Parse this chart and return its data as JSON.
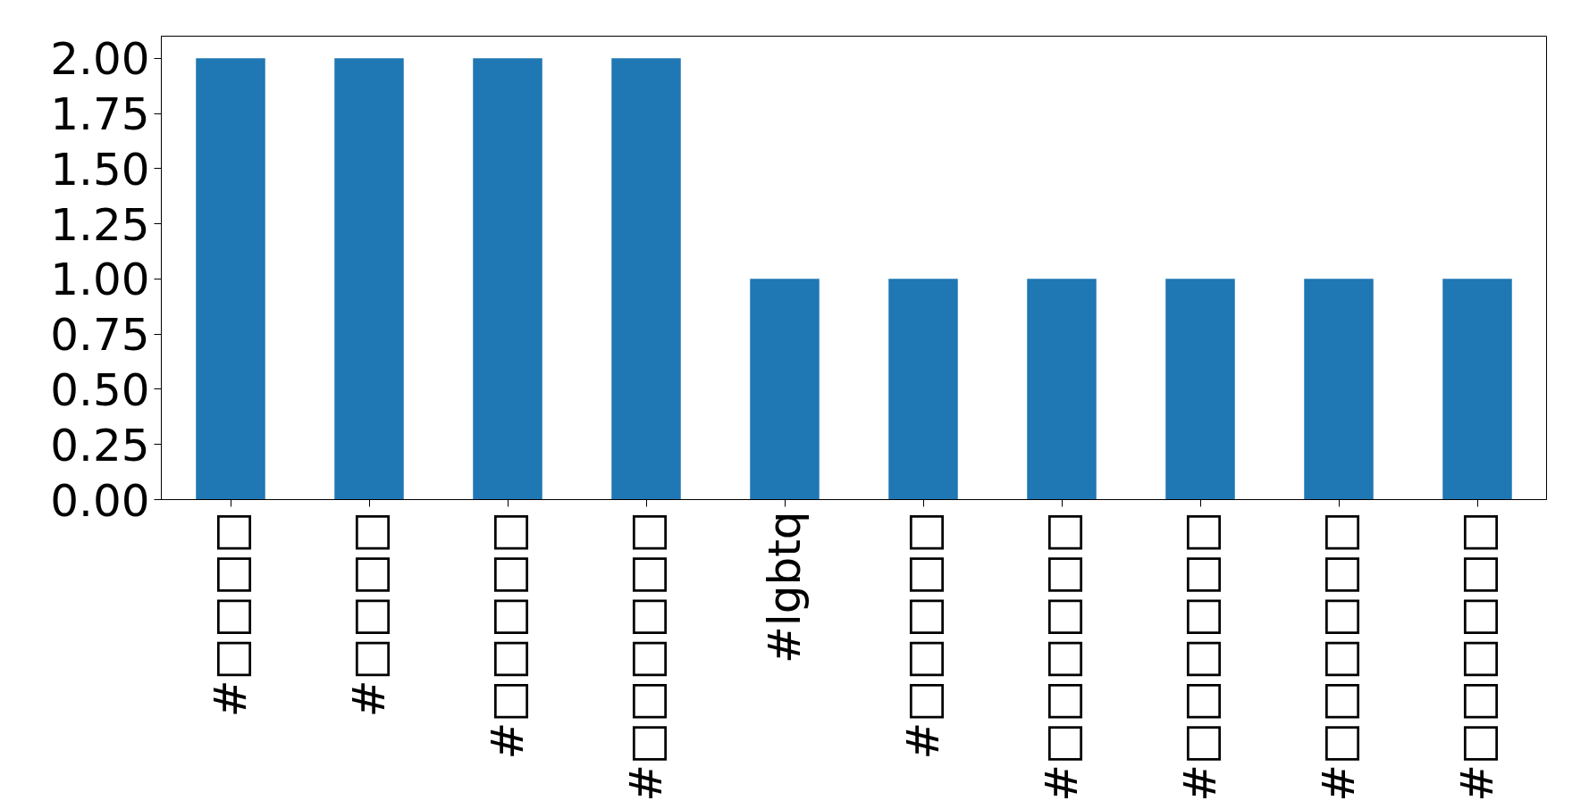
{
  "chart_data": {
    "type": "bar",
    "categories": [
      "#□□□□",
      "#□□□□",
      "#□□□□□",
      "#□□□□□□",
      "#lgbtq",
      "#□□□□□",
      "#□□□□□□",
      "#□□□□□□",
      "#□□□□□□",
      "#□□□□□□"
    ],
    "values": [
      2,
      2,
      2,
      2,
      1,
      1,
      1,
      1,
      1,
      1
    ],
    "color": "#1f77b4",
    "ylim": [
      0,
      2.1
    ],
    "yticks": [
      {
        "value": 0,
        "label": "0.00"
      },
      {
        "value": 0.25,
        "label": "0.25"
      },
      {
        "value": 0.5,
        "label": "0.50"
      },
      {
        "value": 0.75,
        "label": "0.75"
      },
      {
        "value": 1,
        "label": "1.00"
      },
      {
        "value": 1.25,
        "label": "1.25"
      },
      {
        "value": 1.5,
        "label": "1.50"
      },
      {
        "value": 1.75,
        "label": "1.75"
      },
      {
        "value": 2,
        "label": "2.00"
      }
    ],
    "grid": false
  }
}
